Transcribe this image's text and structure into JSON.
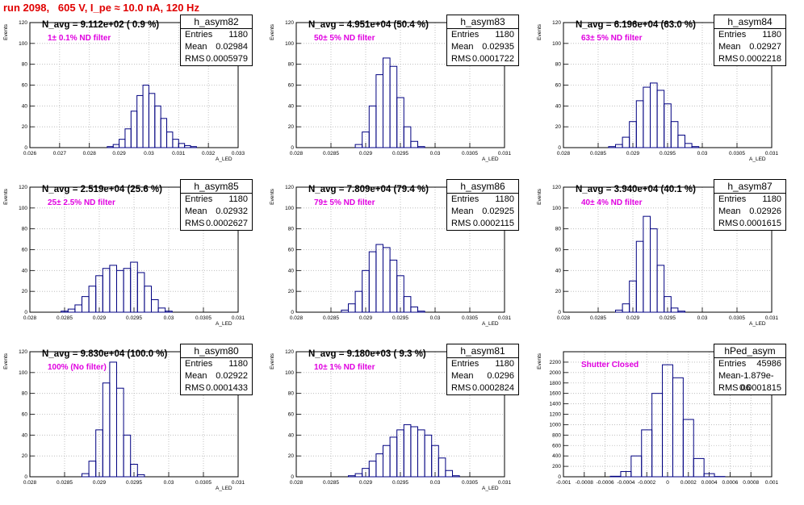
{
  "header": {
    "run_title": "run 2098,   605 V, I_pe ≈ 10.0 nA, 120 Hz"
  },
  "colors": {
    "histogram_line": "#000080",
    "run_title": "#e00000",
    "filter_label": "#e000e0",
    "grid": "#b4b4b4"
  },
  "stats_labels": {
    "entries": "Entries",
    "mean": "Mean",
    "rms": "RMS"
  },
  "chart_data": [
    {
      "type": "bar",
      "hist_name": "h_asym82",
      "n_avg": "N_avg = 9.112e+02 ( 0.9 %)",
      "filter": "1± 0.1% ND filter",
      "entries": "1180",
      "mean": "0.02984",
      "rms": "0.0005979",
      "xlabel": "A_LED",
      "ylabel": "Events",
      "xlim": [
        0.026,
        0.033
      ],
      "ylim": [
        0,
        120
      ],
      "xticks": [
        "0.026",
        "0.027",
        "0.028",
        "0.029",
        "0.03",
        "0.031",
        "0.032",
        "0.033"
      ],
      "yticks": [
        "0",
        "20",
        "40",
        "60",
        "80",
        "100",
        "120"
      ],
      "x": [
        0.0287,
        0.0289,
        0.0291,
        0.0293,
        0.0295,
        0.0297,
        0.0299,
        0.0301,
        0.0303,
        0.0305,
        0.0307,
        0.0309,
        0.0311,
        0.0313,
        0.0315
      ],
      "values": [
        1,
        3,
        8,
        18,
        35,
        50,
        60,
        52,
        40,
        28,
        15,
        8,
        4,
        2,
        1
      ]
    },
    {
      "type": "bar",
      "hist_name": "h_asym83",
      "n_avg": "N_avg = 4.951e+04 (50.4 %)",
      "filter": "50± 5% ND filter",
      "entries": "1180",
      "mean": "0.02935",
      "rms": "0.0001722",
      "xlabel": "A_LED",
      "ylabel": "Events",
      "xlim": [
        0.028,
        0.031
      ],
      "ylim": [
        0,
        120
      ],
      "xticks": [
        "0.028",
        "0.0285",
        "0.029",
        "0.0295",
        "0.03",
        "0.0305",
        "0.031"
      ],
      "yticks": [
        "0",
        "20",
        "40",
        "60",
        "80",
        "100",
        "120"
      ],
      "x": [
        0.0289,
        0.029,
        0.0291,
        0.0292,
        0.0293,
        0.0294,
        0.0295,
        0.0296,
        0.0297,
        0.0298
      ],
      "values": [
        3,
        15,
        40,
        70,
        86,
        78,
        48,
        20,
        6,
        1
      ]
    },
    {
      "type": "bar",
      "hist_name": "h_asym84",
      "n_avg": "N_avg = 6.196e+04 (63.0 %)",
      "filter": "63± 5% ND filter",
      "entries": "1180",
      "mean": "0.02927",
      "rms": "0.0002218",
      "xlabel": "A_LED",
      "ylabel": "Events",
      "xlim": [
        0.028,
        0.031
      ],
      "ylim": [
        0,
        120
      ],
      "xticks": [
        "0.028",
        "0.0285",
        "0.029",
        "0.0295",
        "0.03",
        "0.0305",
        "0.031"
      ],
      "yticks": [
        "0",
        "20",
        "40",
        "60",
        "80",
        "100",
        "120"
      ],
      "x": [
        0.0287,
        0.0288,
        0.0289,
        0.029,
        0.0291,
        0.0292,
        0.0293,
        0.0294,
        0.0295,
        0.0296,
        0.0297,
        0.0298,
        0.0299
      ],
      "values": [
        1,
        3,
        10,
        25,
        45,
        58,
        62,
        55,
        42,
        25,
        12,
        4,
        1
      ]
    },
    {
      "type": "bar",
      "hist_name": "h_asym85",
      "n_avg": "N_avg = 2.519e+04 (25.6 %)",
      "filter": "25± 2.5% ND filter",
      "entries": "1180",
      "mean": "0.02932",
      "rms": "0.0002627",
      "xlabel": "A_LED",
      "ylabel": "Events",
      "xlim": [
        0.028,
        0.031
      ],
      "ylim": [
        0,
        120
      ],
      "xticks": [
        "0.028",
        "0.0285",
        "0.029",
        "0.0295",
        "0.03",
        "0.0305",
        "0.031"
      ],
      "yticks": [
        "0",
        "20",
        "40",
        "60",
        "80",
        "100",
        "120"
      ],
      "x": [
        0.0285,
        0.0286,
        0.0287,
        0.0288,
        0.0289,
        0.029,
        0.0291,
        0.0292,
        0.0293,
        0.0294,
        0.0295,
        0.0296,
        0.0297,
        0.0298,
        0.0299,
        0.03
      ],
      "values": [
        1,
        3,
        7,
        15,
        25,
        35,
        42,
        45,
        40,
        42,
        48,
        38,
        25,
        12,
        4,
        1
      ]
    },
    {
      "type": "bar",
      "hist_name": "h_asym86",
      "n_avg": "N_avg = 7.809e+04 (79.4 %)",
      "filter": "79± 5% ND filter",
      "entries": "1180",
      "mean": "0.02925",
      "rms": "0.0002115",
      "xlabel": "A_LED",
      "ylabel": "Events",
      "xlim": [
        0.028,
        0.031
      ],
      "ylim": [
        0,
        120
      ],
      "xticks": [
        "0.028",
        "0.0285",
        "0.029",
        "0.0295",
        "0.03",
        "0.0305",
        "0.031"
      ],
      "yticks": [
        "0",
        "20",
        "40",
        "60",
        "80",
        "100",
        "120"
      ],
      "x": [
        0.0287,
        0.0288,
        0.0289,
        0.029,
        0.0291,
        0.0292,
        0.0293,
        0.0294,
        0.0295,
        0.0296,
        0.0297,
        0.0298
      ],
      "values": [
        2,
        8,
        20,
        40,
        58,
        65,
        62,
        50,
        35,
        15,
        5,
        1
      ]
    },
    {
      "type": "bar",
      "hist_name": "h_asym87",
      "n_avg": "N_avg = 3.940e+04 (40.1 %)",
      "filter": "40± 4% ND filter",
      "entries": "1180",
      "mean": "0.02926",
      "rms": "0.0001615",
      "xlabel": "A_LED",
      "ylabel": "Events",
      "xlim": [
        0.028,
        0.031
      ],
      "ylim": [
        0,
        120
      ],
      "xticks": [
        "0.028",
        "0.0285",
        "0.029",
        "0.0295",
        "0.03",
        "0.0305",
        "0.031"
      ],
      "yticks": [
        "0",
        "20",
        "40",
        "60",
        "80",
        "100",
        "120"
      ],
      "x": [
        0.0288,
        0.0289,
        0.029,
        0.0291,
        0.0292,
        0.0293,
        0.0294,
        0.0295,
        0.0296,
        0.0297
      ],
      "values": [
        2,
        8,
        30,
        68,
        92,
        80,
        45,
        15,
        4,
        1
      ]
    },
    {
      "type": "bar",
      "hist_name": "h_asym80",
      "n_avg": "N_avg = 9.830e+04 (100.0 %)",
      "filter": "100% (No filter)",
      "entries": "1180",
      "mean": "0.02922",
      "rms": "0.0001433",
      "xlabel": "A_LED",
      "ylabel": "Events",
      "xlim": [
        0.028,
        0.031
      ],
      "ylim": [
        0,
        120
      ],
      "xticks": [
        "0.028",
        "0.0285",
        "0.029",
        "0.0295",
        "0.03",
        "0.0305",
        "0.031"
      ],
      "yticks": [
        "0",
        "20",
        "40",
        "60",
        "80",
        "100",
        "120"
      ],
      "x": [
        0.0288,
        0.0289,
        0.029,
        0.0291,
        0.0292,
        0.0293,
        0.0294,
        0.0295,
        0.0296
      ],
      "values": [
        3,
        15,
        45,
        90,
        110,
        85,
        40,
        12,
        2
      ]
    },
    {
      "type": "bar",
      "hist_name": "h_asym81",
      "n_avg": "N_avg = 9.180e+03 ( 9.3 %)",
      "filter": "10± 1% ND filter",
      "entries": "1180",
      "mean": "0.0296",
      "rms": "0.0002824",
      "xlabel": "A_LED",
      "ylabel": "Events",
      "xlim": [
        0.028,
        0.031
      ],
      "ylim": [
        0,
        120
      ],
      "xticks": [
        "0.028",
        "0.0285",
        "0.029",
        "0.0295",
        "0.03",
        "0.0305",
        "0.031"
      ],
      "yticks": [
        "0",
        "20",
        "40",
        "60",
        "80",
        "100",
        "120"
      ],
      "x": [
        0.0288,
        0.0289,
        0.029,
        0.0291,
        0.0292,
        0.0293,
        0.0294,
        0.0295,
        0.0296,
        0.0297,
        0.0298,
        0.0299,
        0.03,
        0.0301,
        0.0302,
        0.0303
      ],
      "values": [
        1,
        3,
        8,
        15,
        22,
        30,
        38,
        45,
        50,
        48,
        45,
        40,
        30,
        18,
        6,
        1
      ]
    },
    {
      "type": "bar",
      "hist_name": "hPed_asym",
      "n_avg": "",
      "filter": "Shutter Closed",
      "entries": "45986",
      "mean": "-1.879e-06",
      "rms": "0.0001815",
      "xlabel": "",
      "ylabel": "Events",
      "xlim": [
        -0.001,
        0.001
      ],
      "ylim": [
        0,
        2400
      ],
      "xticks": [
        "-0.001",
        "-0.0008",
        "-0.0006",
        "-0.0004",
        "-0.0002",
        "0",
        "0.0002",
        "0.0004",
        "0.0006",
        "0.0008",
        "0.001"
      ],
      "yticks": [
        "0",
        "200",
        "400",
        "600",
        "800",
        "1000",
        "1200",
        "1400",
        "1600",
        "1800",
        "2000",
        "2200"
      ],
      "x": [
        -0.0005,
        -0.0004,
        -0.0003,
        -0.0002,
        -0.0001,
        0,
        0.0001,
        0.0002,
        0.0003,
        0.0004,
        0.0005
      ],
      "values": [
        10,
        100,
        400,
        900,
        1600,
        2150,
        1900,
        1100,
        350,
        60,
        5
      ]
    }
  ]
}
